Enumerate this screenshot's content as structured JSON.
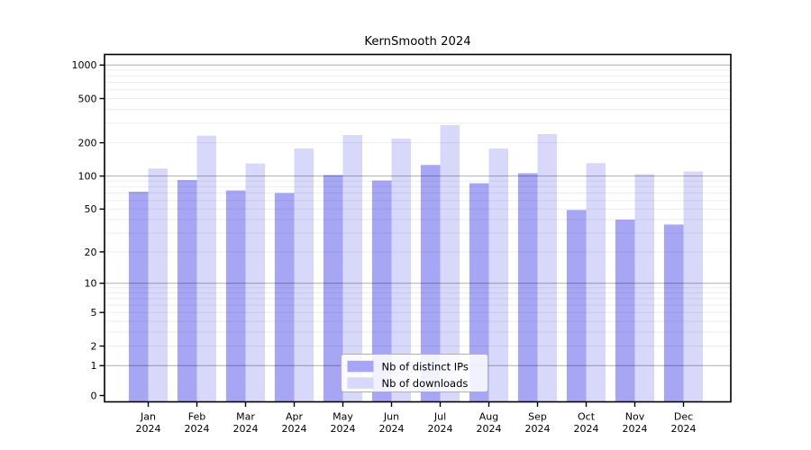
{
  "chart_data": {
    "type": "bar",
    "title": "KernSmooth 2024",
    "year": "2024",
    "categories": [
      "Jan 2024",
      "Feb 2024",
      "Mar 2024",
      "Apr 2024",
      "May 2024",
      "Jun 2024",
      "Jul 2024",
      "Aug 2024",
      "Sep 2024",
      "Oct 2024",
      "Nov 2024",
      "Dec 2024"
    ],
    "x_tick_labels": [
      [
        "Jan",
        "2024"
      ],
      [
        "Feb",
        "2024"
      ],
      [
        "Mar",
        "2024"
      ],
      [
        "Apr",
        "2024"
      ],
      [
        "May",
        "2024"
      ],
      [
        "Jun",
        "2024"
      ],
      [
        "Jul",
        "2024"
      ],
      [
        "Aug",
        "2024"
      ],
      [
        "Sep",
        "2024"
      ],
      [
        "Oct",
        "2024"
      ],
      [
        "Nov",
        "2024"
      ],
      [
        "Dec",
        "2024"
      ]
    ],
    "series": [
      {
        "name": "Nb of distinct IPs",
        "color": "#a6a6f5",
        "values": [
          72,
          92,
          74,
          70,
          102,
          91,
          126,
          86,
          106,
          49,
          40,
          36
        ]
      },
      {
        "name": "Nb of downloads",
        "color": "#d8d8fa",
        "values": [
          117,
          232,
          130,
          177,
          235,
          218,
          288,
          177,
          239,
          131,
          104,
          110
        ]
      }
    ],
    "yscale": "log1p",
    "ylim": [
      0,
      1000
    ],
    "yticks": [
      0,
      1,
      2,
      5,
      10,
      20,
      50,
      100,
      200,
      500,
      1000
    ],
    "xlabel": "",
    "ylabel": "",
    "grid": "horizontal-log",
    "legend": {
      "position": "inside-bottom-center",
      "entries": [
        "Nb of distinct IPs",
        "Nb of downloads"
      ]
    }
  }
}
